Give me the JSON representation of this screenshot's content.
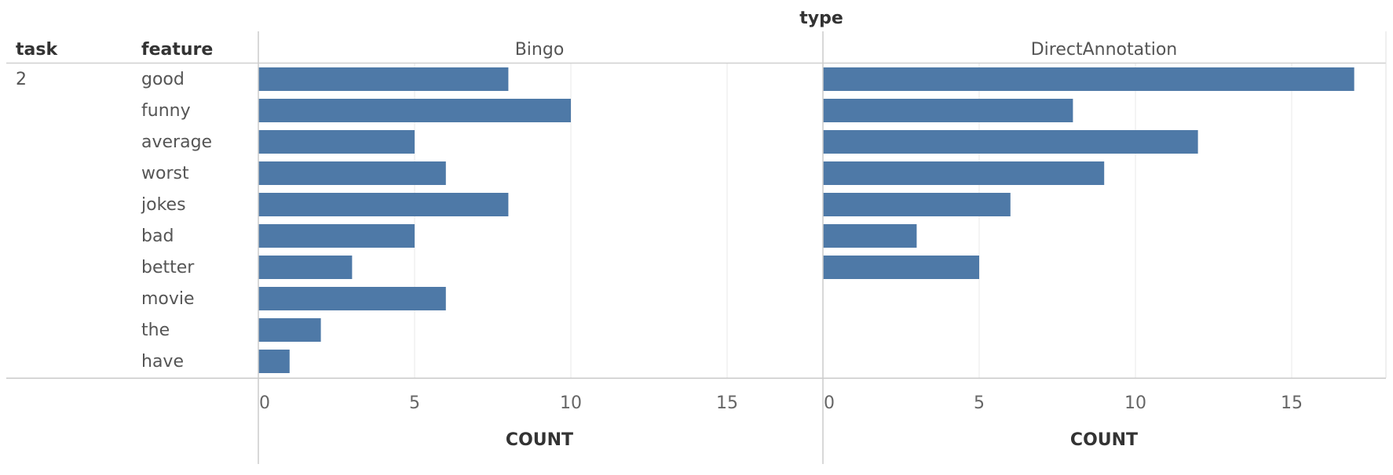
{
  "chart_data": {
    "type": "bar",
    "orientation": "horizontal",
    "header": {
      "row_field_1": "task",
      "row_field_2": "feature",
      "column_field": "type"
    },
    "task_value": "2",
    "categories": [
      "good",
      "funny",
      "average",
      "worst",
      "jokes",
      "bad",
      "better",
      "movie",
      "the",
      "have"
    ],
    "panels": [
      {
        "name": "Bingo",
        "values": [
          8,
          10,
          5,
          6,
          8,
          5,
          3,
          6,
          2,
          1
        ]
      },
      {
        "name": "DirectAnnotation",
        "values": [
          17,
          8,
          12,
          9,
          6,
          3,
          5,
          null,
          null,
          null
        ]
      }
    ],
    "xlabel": "COUNT",
    "xlim": [
      0,
      18
    ],
    "xticks": [
      0,
      5,
      10,
      15
    ],
    "bar_color": "#4e79a7",
    "grid": true
  }
}
